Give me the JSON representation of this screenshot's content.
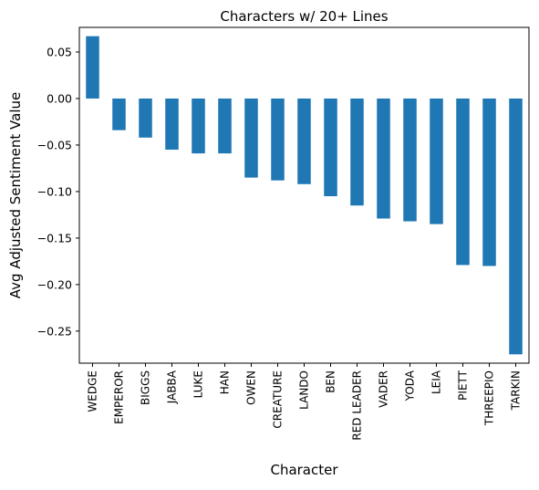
{
  "chart_data": {
    "type": "bar",
    "title": "Characters w/ 20+ Lines",
    "xlabel": "Character",
    "ylabel": "Avg Adjusted Sentiment Value",
    "categories": [
      "WEDGE",
      "EMPEROR",
      "BIGGS",
      "JABBA",
      "LUKE",
      "HAN",
      "OWEN",
      "CREATURE",
      "LANDO",
      "BEN",
      "RED LEADER",
      "VADER",
      "YODA",
      "LEIA",
      "PIETT",
      "THREEPIO",
      "TARKIN"
    ],
    "values": [
      0.067,
      -0.034,
      -0.042,
      -0.055,
      -0.059,
      -0.059,
      -0.085,
      -0.088,
      -0.092,
      -0.105,
      -0.115,
      -0.129,
      -0.132,
      -0.135,
      -0.179,
      -0.18,
      -0.275
    ],
    "yticks": [
      0.05,
      0.0,
      -0.05,
      -0.1,
      -0.15,
      -0.2,
      -0.25
    ],
    "ytick_labels": [
      "0.05",
      "0.00",
      "−0.05",
      "−0.10",
      "−0.15",
      "−0.20",
      "−0.25"
    ],
    "ylim": [
      -0.2845,
      0.0765
    ],
    "bar_color": "#1f77b4",
    "grid": false,
    "legend": "none"
  }
}
